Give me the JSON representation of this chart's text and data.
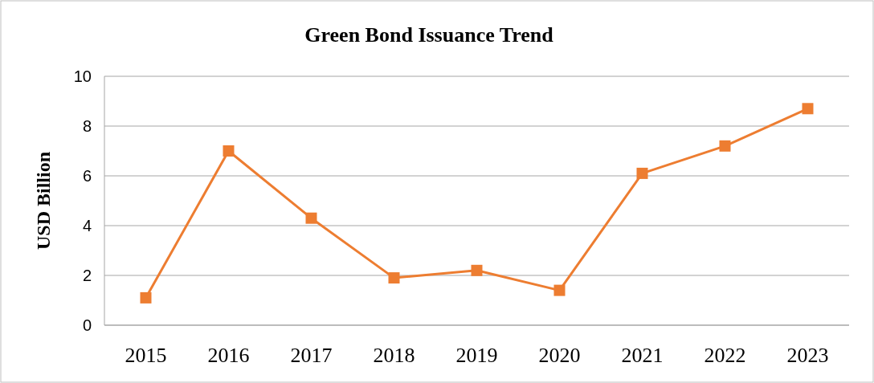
{
  "chart_data": {
    "type": "line",
    "title": "Green Bond Issuance Trend",
    "ylabel": "USD Billion",
    "categories": [
      "2015",
      "2016",
      "2017",
      "2018",
      "2019",
      "2020",
      "2021",
      "2022",
      "2023"
    ],
    "series": [
      {
        "color": "#ed7d31",
        "values": [
          1.1,
          7.0,
          4.3,
          1.9,
          2.2,
          1.4,
          6.1,
          7.2,
          8.7
        ]
      }
    ],
    "ylim": [
      0,
      10
    ],
    "yticks": [
      0,
      2,
      4,
      6,
      8,
      10
    ],
    "grid": "y",
    "marker": "square",
    "line_style": "solid"
  }
}
